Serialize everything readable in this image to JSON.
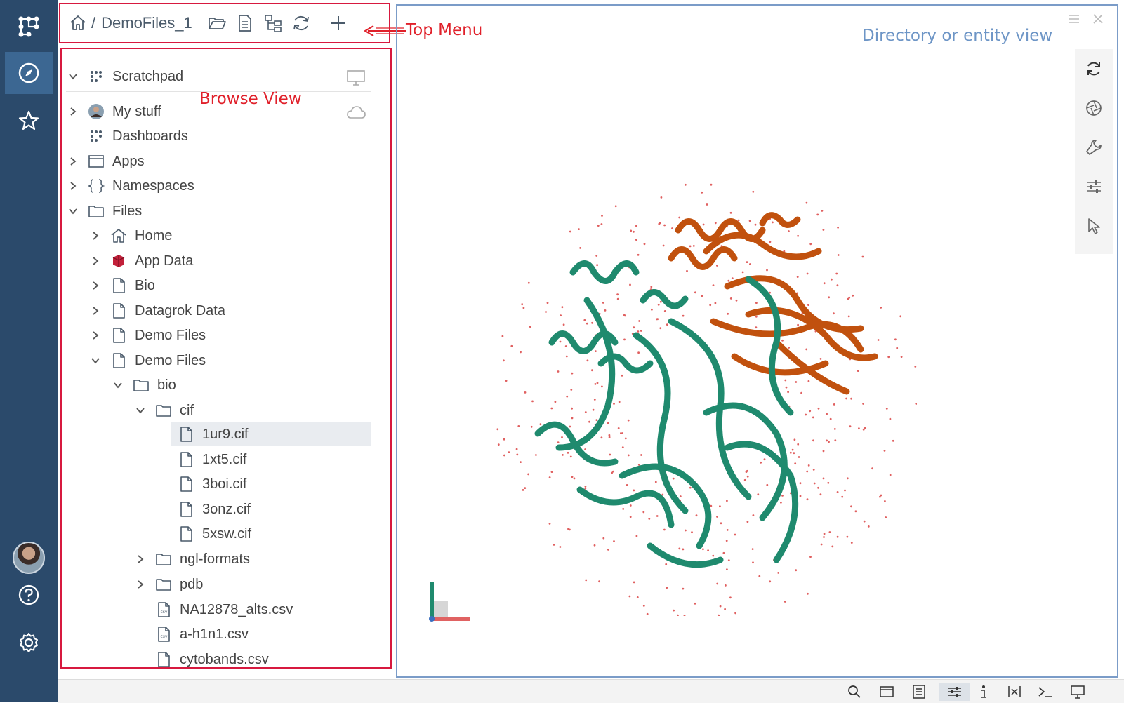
{
  "breadcrumb": {
    "separator": "/",
    "current": "DemoFiles_1"
  },
  "annotations": {
    "top_menu": "Top Menu",
    "browse_view": "Browse View",
    "main_view": "Directory or entity view"
  },
  "tree": {
    "scratchpad": "Scratchpad",
    "my_stuff": "My stuff",
    "dashboards": "Dashboards",
    "apps": "Apps",
    "namespaces": "Namespaces",
    "files": "Files",
    "home": "Home",
    "app_data": "App Data",
    "bio": "Bio",
    "datagrok_data": "Datagrok Data",
    "demo_files_a": "Demo Files",
    "demo_files_b": "Demo Files",
    "bio_folder": "bio",
    "cif_folder": "cif",
    "file_1": "1ur9.cif",
    "file_2": "1xt5.cif",
    "file_3": "3boi.cif",
    "file_4": "3onz.cif",
    "file_5": "5xsw.cif",
    "ngl_formats": "ngl-formats",
    "pdb": "pdb",
    "csv_1": "NA12878_alts.csv",
    "csv_2": "a-h1n1.csv",
    "csv_3": "cytobands.csv"
  },
  "colors": {
    "rail": "#2b4a6b",
    "annotation_red": "#e0202a",
    "annotation_blue": "#6d95c6",
    "protein_chain_a": "#1f8a6e",
    "protein_chain_b": "#c1510e"
  }
}
